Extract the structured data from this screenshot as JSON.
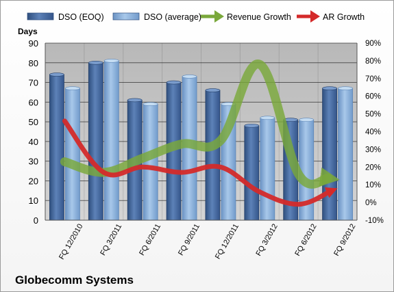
{
  "chart_data": {
    "type": "bar",
    "title": "Globecomm Systems",
    "y_left_label": "Days",
    "categories": [
      "FQ 12/2010",
      "FQ 3/2011",
      "FQ 6/2011",
      "FQ 9/2011",
      "FQ 12/2011",
      "FQ 3/2012",
      "FQ 6/2012",
      "FQ 9/2012"
    ],
    "y_left_ticks": [
      "0",
      "10",
      "20",
      "30",
      "40",
      "50",
      "60",
      "70",
      "80",
      "90"
    ],
    "y_right_ticks": [
      "-10%",
      "0%",
      "10%",
      "20%",
      "30%",
      "40%",
      "50%",
      "60%",
      "70%",
      "80%",
      "90%"
    ],
    "ylim_left": [
      0,
      90
    ],
    "ylim_right": [
      -10,
      90
    ],
    "bar_series": [
      {
        "name": "DSO (EOQ)",
        "color": "#4a6ea3",
        "values": [
          74,
          80,
          61,
          70,
          66,
          48,
          51,
          67
        ]
      },
      {
        "name": "DSO (average)",
        "color": "#8fb4dd",
        "values": [
          67,
          81,
          59,
          73,
          59,
          52,
          51,
          67
        ]
      }
    ],
    "line_series": [
      {
        "name": "Revenue Growth",
        "axis": "right",
        "color": "#7aa83b",
        "values": [
          23,
          17,
          25,
          33,
          35,
          78,
          16,
          13
        ]
      },
      {
        "name": "AR Growth",
        "axis": "right",
        "color": "#d42a2a",
        "values": [
          46,
          17,
          20,
          17,
          20,
          6,
          -1,
          8
        ]
      }
    ],
    "legend_position": "top",
    "grid": true
  }
}
